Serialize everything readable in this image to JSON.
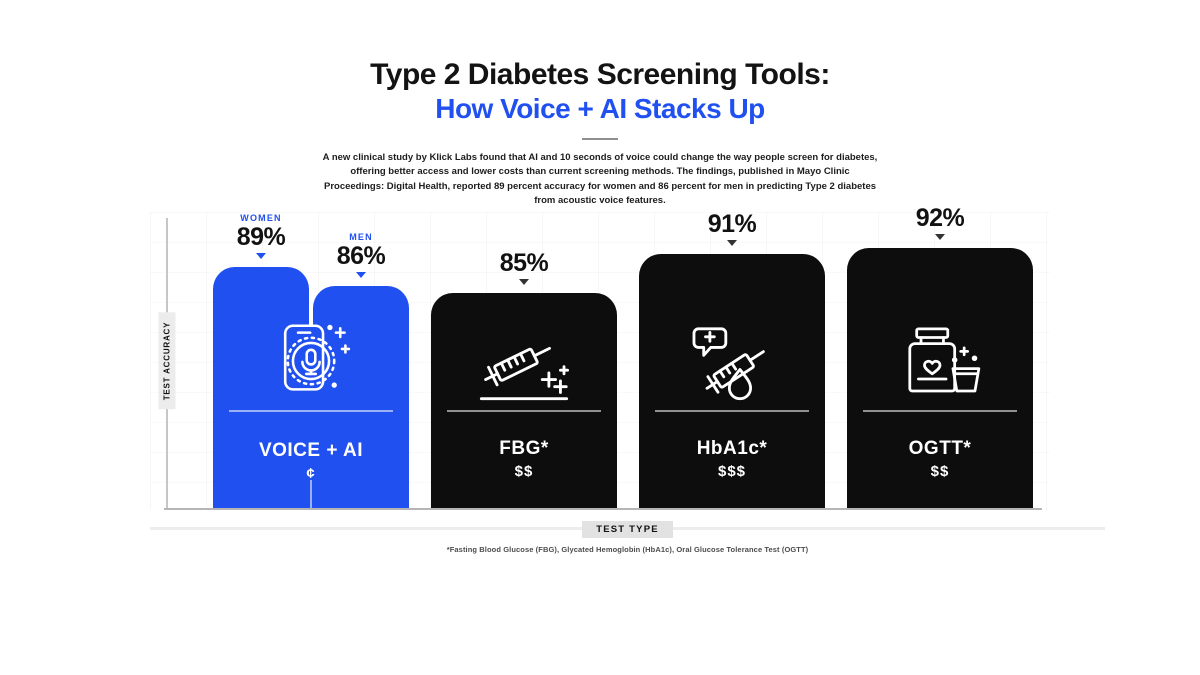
{
  "header": {
    "title_line1": "Type 2 Diabetes Screening Tools:",
    "title_line2": "How Voice + AI Stacks Up",
    "intro": "A new clinical study by Klick Labs found that AI and 10 seconds of voice could change the way people screen for diabetes, offering better access and lower costs than current screening methods. The findings, published in Mayo Clinic Proceedings: Digital Health, reported 89 percent accuracy for women and 86 percent for men in predicting Type 2 diabetes from acoustic voice features."
  },
  "colors": {
    "accent": "#2150f0",
    "bar_dark": "#0d0d0d",
    "background": "#ffffff"
  },
  "footnote": "*Fasting Blood Glucose (FBG), Glycated Hemoglobin (HbA1c), Oral Glucose Tolerance Test (OGTT)",
  "chart_data": {
    "type": "bar",
    "title": "Type 2 Diabetes Screening Tools: How Voice + AI Stacks Up",
    "xlabel": "TEST TYPE",
    "ylabel": "TEST ACCURACY",
    "ylim": [
      0,
      100
    ],
    "unit": "percent accuracy",
    "legend_position": "none",
    "grid": "faint",
    "bars": [
      {
        "label": "VOICE + AI",
        "cost": "¢",
        "color": "#2150f0",
        "icon": "voice-ai-phone-mic-icon",
        "sub_bars": [
          {
            "group": "WOMEN",
            "value": 89,
            "value_label": "89%"
          },
          {
            "group": "MEN",
            "value": 86,
            "value_label": "86%"
          }
        ]
      },
      {
        "label": "FBG*",
        "cost": "$$",
        "value": 85,
        "value_label": "85%",
        "color": "#0d0d0d",
        "icon": "syringe-icon"
      },
      {
        "label": "HbA1c*",
        "cost": "$$$",
        "value": 91,
        "value_label": "91%",
        "color": "#0d0d0d",
        "icon": "syringe-blood-drop-icon"
      },
      {
        "label": "OGTT*",
        "cost": "$$",
        "value": 92,
        "value_label": "92%",
        "color": "#0d0d0d",
        "icon": "glucose-drink-icon"
      }
    ]
  }
}
